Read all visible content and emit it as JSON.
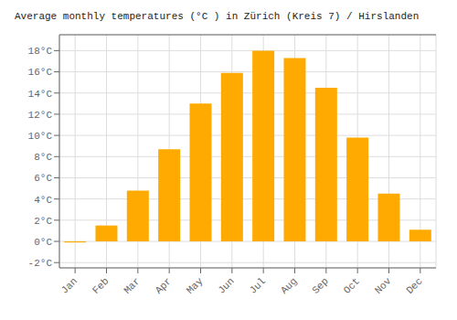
{
  "chart_data": {
    "type": "bar",
    "title": "Average monthly temperatures (°C ) in Zürich (Kreis 7) / Hirslanden",
    "categories": [
      "Jan",
      "Feb",
      "Mar",
      "Apr",
      "May",
      "Jun",
      "Jul",
      "Aug",
      "Sep",
      "Oct",
      "Nov",
      "Dec"
    ],
    "values": [
      -0.1,
      1.5,
      4.8,
      8.7,
      13.0,
      15.9,
      18.0,
      17.3,
      14.5,
      9.8,
      4.5,
      1.1
    ],
    "color": "#FFAA00",
    "ylim": [
      -2.5,
      19.5
    ],
    "yticks": [
      {
        "value": -2,
        "label": "-2°C"
      },
      {
        "value": 0,
        "label": "0°C"
      },
      {
        "value": 2,
        "label": "2°C"
      },
      {
        "value": 4,
        "label": "4°C"
      },
      {
        "value": 6,
        "label": "6°C"
      },
      {
        "value": 8,
        "label": "8°C"
      },
      {
        "value": 10,
        "label": "10°C"
      },
      {
        "value": 12,
        "label": "12°C"
      },
      {
        "value": 14,
        "label": "14°C"
      },
      {
        "value": 16,
        "label": "16°C"
      },
      {
        "value": 18,
        "label": "18°C"
      }
    ],
    "grid": true
  }
}
